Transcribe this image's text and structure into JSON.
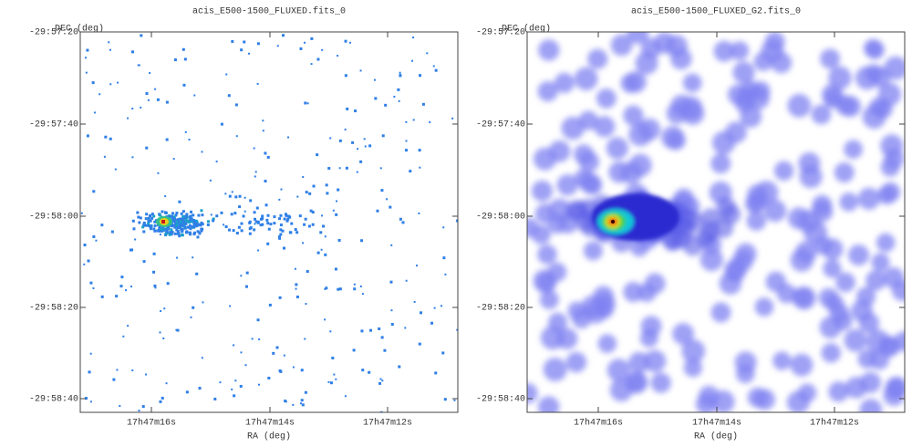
{
  "panels": [
    {
      "title": "acis_E500-1500_FLUXED.fits_0",
      "x_label": "RA (deg)",
      "y_label": "DEC (deg)",
      "x_ticks": [
        "17h47m16s",
        "17h47m14s",
        "17h47m12s"
      ],
      "y_ticks": [
        "-29:57:20",
        "-29:57:40",
        "-29:58:00",
        "-29:58:20",
        "-29:58:40"
      ]
    },
    {
      "title": "acis_E500-1500_FLUXED_G2.fits_0",
      "x_label": "RA (deg)",
      "y_label": "DEC (deg)",
      "x_ticks": [
        "17h47m16s",
        "17h47m14s",
        "17h47m12s"
      ],
      "y_ticks": [
        "-29:57:20",
        "-29:57:40",
        "-29:58:00",
        "-29:58:20",
        "-29:58:40"
      ]
    }
  ]
}
